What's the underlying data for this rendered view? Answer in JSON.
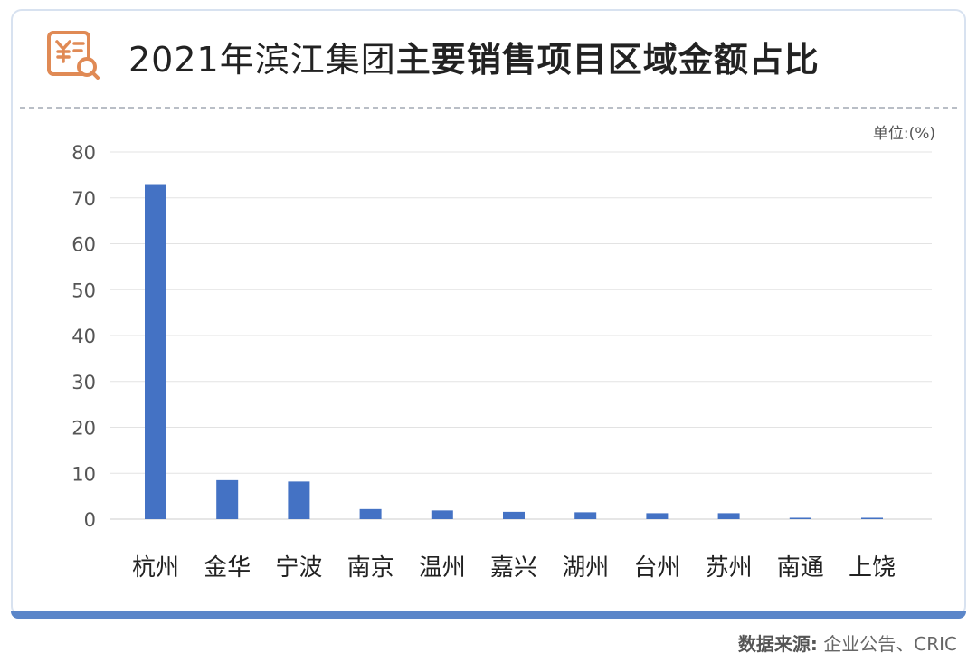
{
  "title": {
    "plain": "2021年滨江集团",
    "bold": "主要销售项目区域金额占比"
  },
  "unit": "单位:(%)",
  "source": {
    "label": "数据来源:",
    "value": "企业公告、CRIC"
  },
  "icon": "receipt-search-icon",
  "colors": {
    "bar": "#4472c4",
    "accent": "#e08a55",
    "border": "#5b86c9"
  },
  "chart_data": {
    "type": "bar",
    "categories": [
      "杭州",
      "金华",
      "宁波",
      "南京",
      "温州",
      "嘉兴",
      "湖州",
      "台州",
      "苏州",
      "南通",
      "上饶"
    ],
    "values": [
      73,
      8.5,
      8.2,
      2.2,
      1.9,
      1.6,
      1.5,
      1.3,
      1.3,
      0.3,
      0.3
    ],
    "yticks": [
      0,
      10,
      20,
      30,
      40,
      50,
      60,
      70,
      80
    ],
    "ylim": [
      0,
      80
    ],
    "grid": true
  }
}
